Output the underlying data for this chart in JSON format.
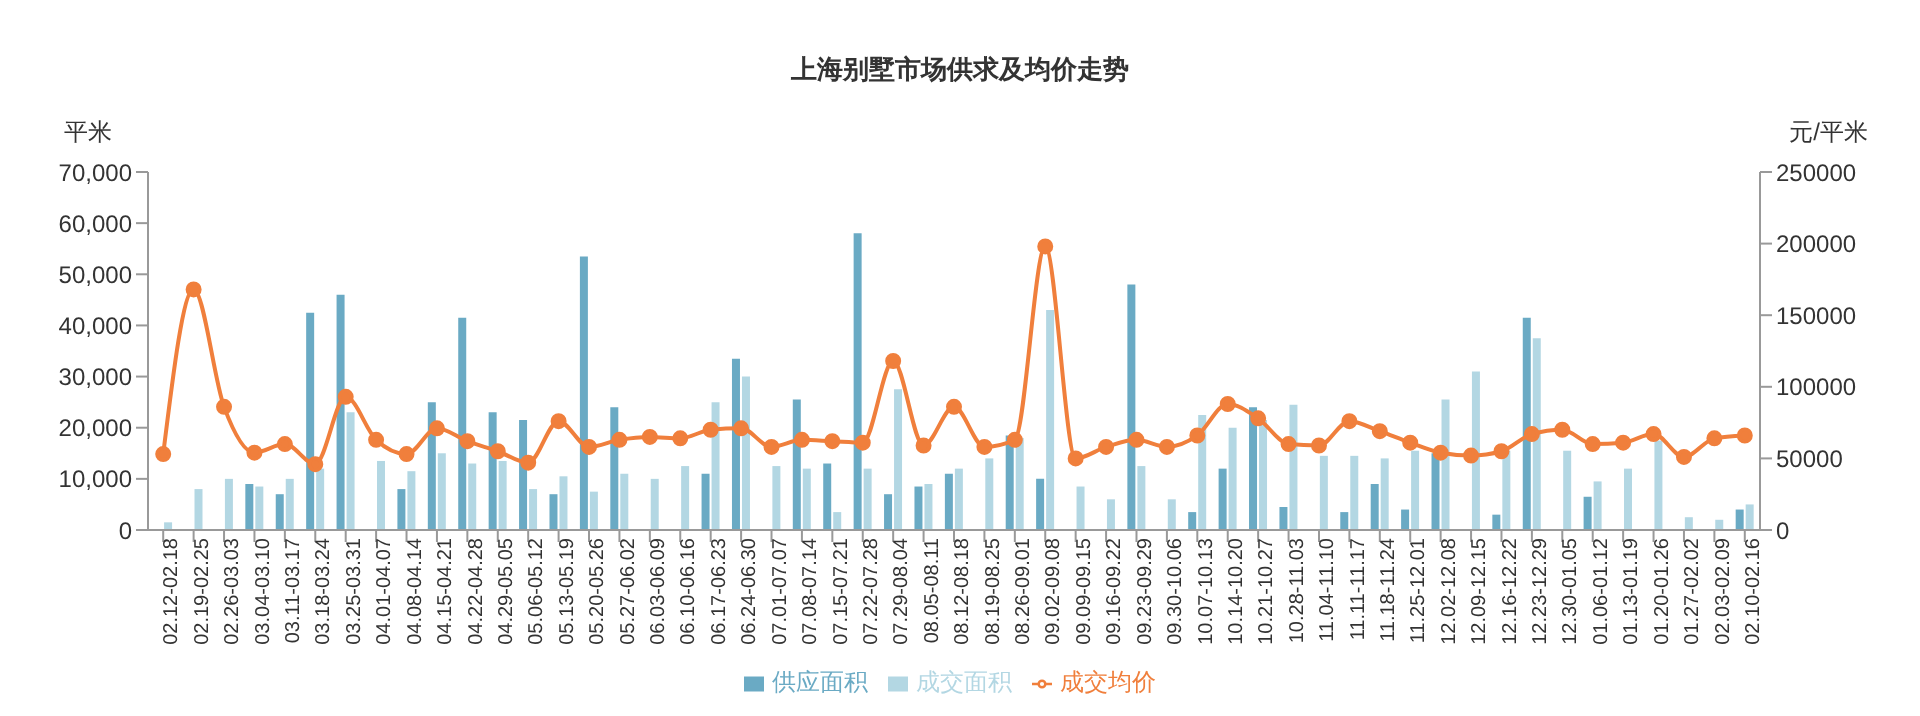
{
  "chart_data": {
    "type": "bar",
    "title": "上海别墅市场供求及均价走势",
    "ylabel": "平米",
    "y2label": "元/平米",
    "categories": [
      "02.12-02.18",
      "02.19-02.25",
      "02.26-03.03",
      "03.04-03.10",
      "03.11-03.17",
      "03.18-03.24",
      "03.25-03.31",
      "04.01-04.07",
      "04.08-04.14",
      "04.15-04.21",
      "04.22-04.28",
      "04.29-05.05",
      "05.06-05.12",
      "05.13-05.19",
      "05.20-05.26",
      "05.27-06.02",
      "06.03-06.09",
      "06.10-06.16",
      "06.17-06.23",
      "06.24-06.30",
      "07.01-07.07",
      "07.08-07.14",
      "07.15-07.21",
      "07.22-07.28",
      "07.29-08.04",
      "08.05-08.11",
      "08.12-08.18",
      "08.19-08.25",
      "08.26-09.01",
      "09.02-09.08",
      "09.09-09.15",
      "09.16-09.22",
      "09.23-09.29",
      "09.30-10.06",
      "10.07-10.13",
      "10.14-10.20",
      "10.21-10.27",
      "10.28-11.03",
      "11.04-11.10",
      "11.11-11.17",
      "11.18-11.24",
      "11.25-12.01",
      "12.02-12.08",
      "12.09-12.15",
      "12.16-12.22",
      "12.23-12.29",
      "12.30-01.05",
      "01.06-01.12",
      "01.13-01.19",
      "01.20-01.26",
      "01.27-02.02",
      "02.03-02.09",
      "02.10-02.16"
    ],
    "series": [
      {
        "name": "供应面积",
        "color": "#6aaac4",
        "values": [
          0,
          0,
          0,
          9000,
          7000,
          42500,
          46000,
          0,
          8000,
          25000,
          41500,
          23000,
          21500,
          7000,
          53500,
          24000,
          0,
          0,
          11000,
          33500,
          0,
          25500,
          13000,
          58000,
          7000,
          8500,
          11000,
          0,
          18500,
          10000,
          0,
          0,
          48000,
          0,
          3500,
          12000,
          24000,
          4500,
          0,
          3500,
          9000,
          4000,
          15000,
          0,
          3000,
          41500,
          0,
          6500,
          0,
          0,
          0,
          0,
          4000
        ]
      },
      {
        "name": "成交面积",
        "color": "#b3d7e3",
        "values": [
          1500,
          8000,
          10000,
          8500,
          10000,
          12000,
          23000,
          13500,
          11500,
          15000,
          13000,
          13500,
          8000,
          10500,
          7500,
          11000,
          10000,
          12500,
          25000,
          30000,
          12500,
          12000,
          3500,
          12000,
          27500,
          9000,
          12000,
          14000,
          18000,
          43000,
          8500,
          6000,
          12500,
          6000,
          22500,
          20000,
          21500,
          24500,
          14500,
          14500,
          14000,
          15500,
          25500,
          31000,
          15500,
          37500,
          15500,
          9500,
          12000,
          17500,
          2500,
          2000,
          5000
        ]
      },
      {
        "name": "成交均价",
        "type": "line",
        "axis": "y2",
        "color": "#f07f3c",
        "marker": "circle",
        "values": [
          53000,
          168000,
          86000,
          54000,
          60000,
          46000,
          93000,
          63000,
          53000,
          71000,
          62000,
          55000,
          47000,
          76000,
          58000,
          63000,
          65000,
          64000,
          70000,
          71000,
          58000,
          63000,
          62000,
          61000,
          118000,
          59000,
          86000,
          58000,
          63000,
          198000,
          50000,
          58000,
          63000,
          58000,
          66000,
          88000,
          78000,
          60000,
          59000,
          76000,
          69000,
          61000,
          54000,
          52000,
          55000,
          67000,
          70000,
          60000,
          61000,
          67000,
          51000,
          64000,
          66000
        ]
      }
    ],
    "ylim": [
      0,
      70000
    ],
    "yticks": [
      0,
      {
        "value": 10000,
        "label": "10,000"
      },
      {
        "value": 20000,
        "label": "20,000"
      },
      {
        "value": 30000,
        "label": "30,000"
      },
      {
        "value": 40000,
        "label": "40,000"
      },
      {
        "value": 50000,
        "label": "50,000"
      },
      {
        "value": 60000,
        "label": "60,000"
      },
      {
        "value": 70000,
        "label": "70,000"
      }
    ],
    "y2lim": [
      0,
      250000
    ],
    "y2ticks": [
      0,
      50000,
      100000,
      150000,
      200000,
      250000
    ],
    "grid": false,
    "legend": "bottom"
  }
}
